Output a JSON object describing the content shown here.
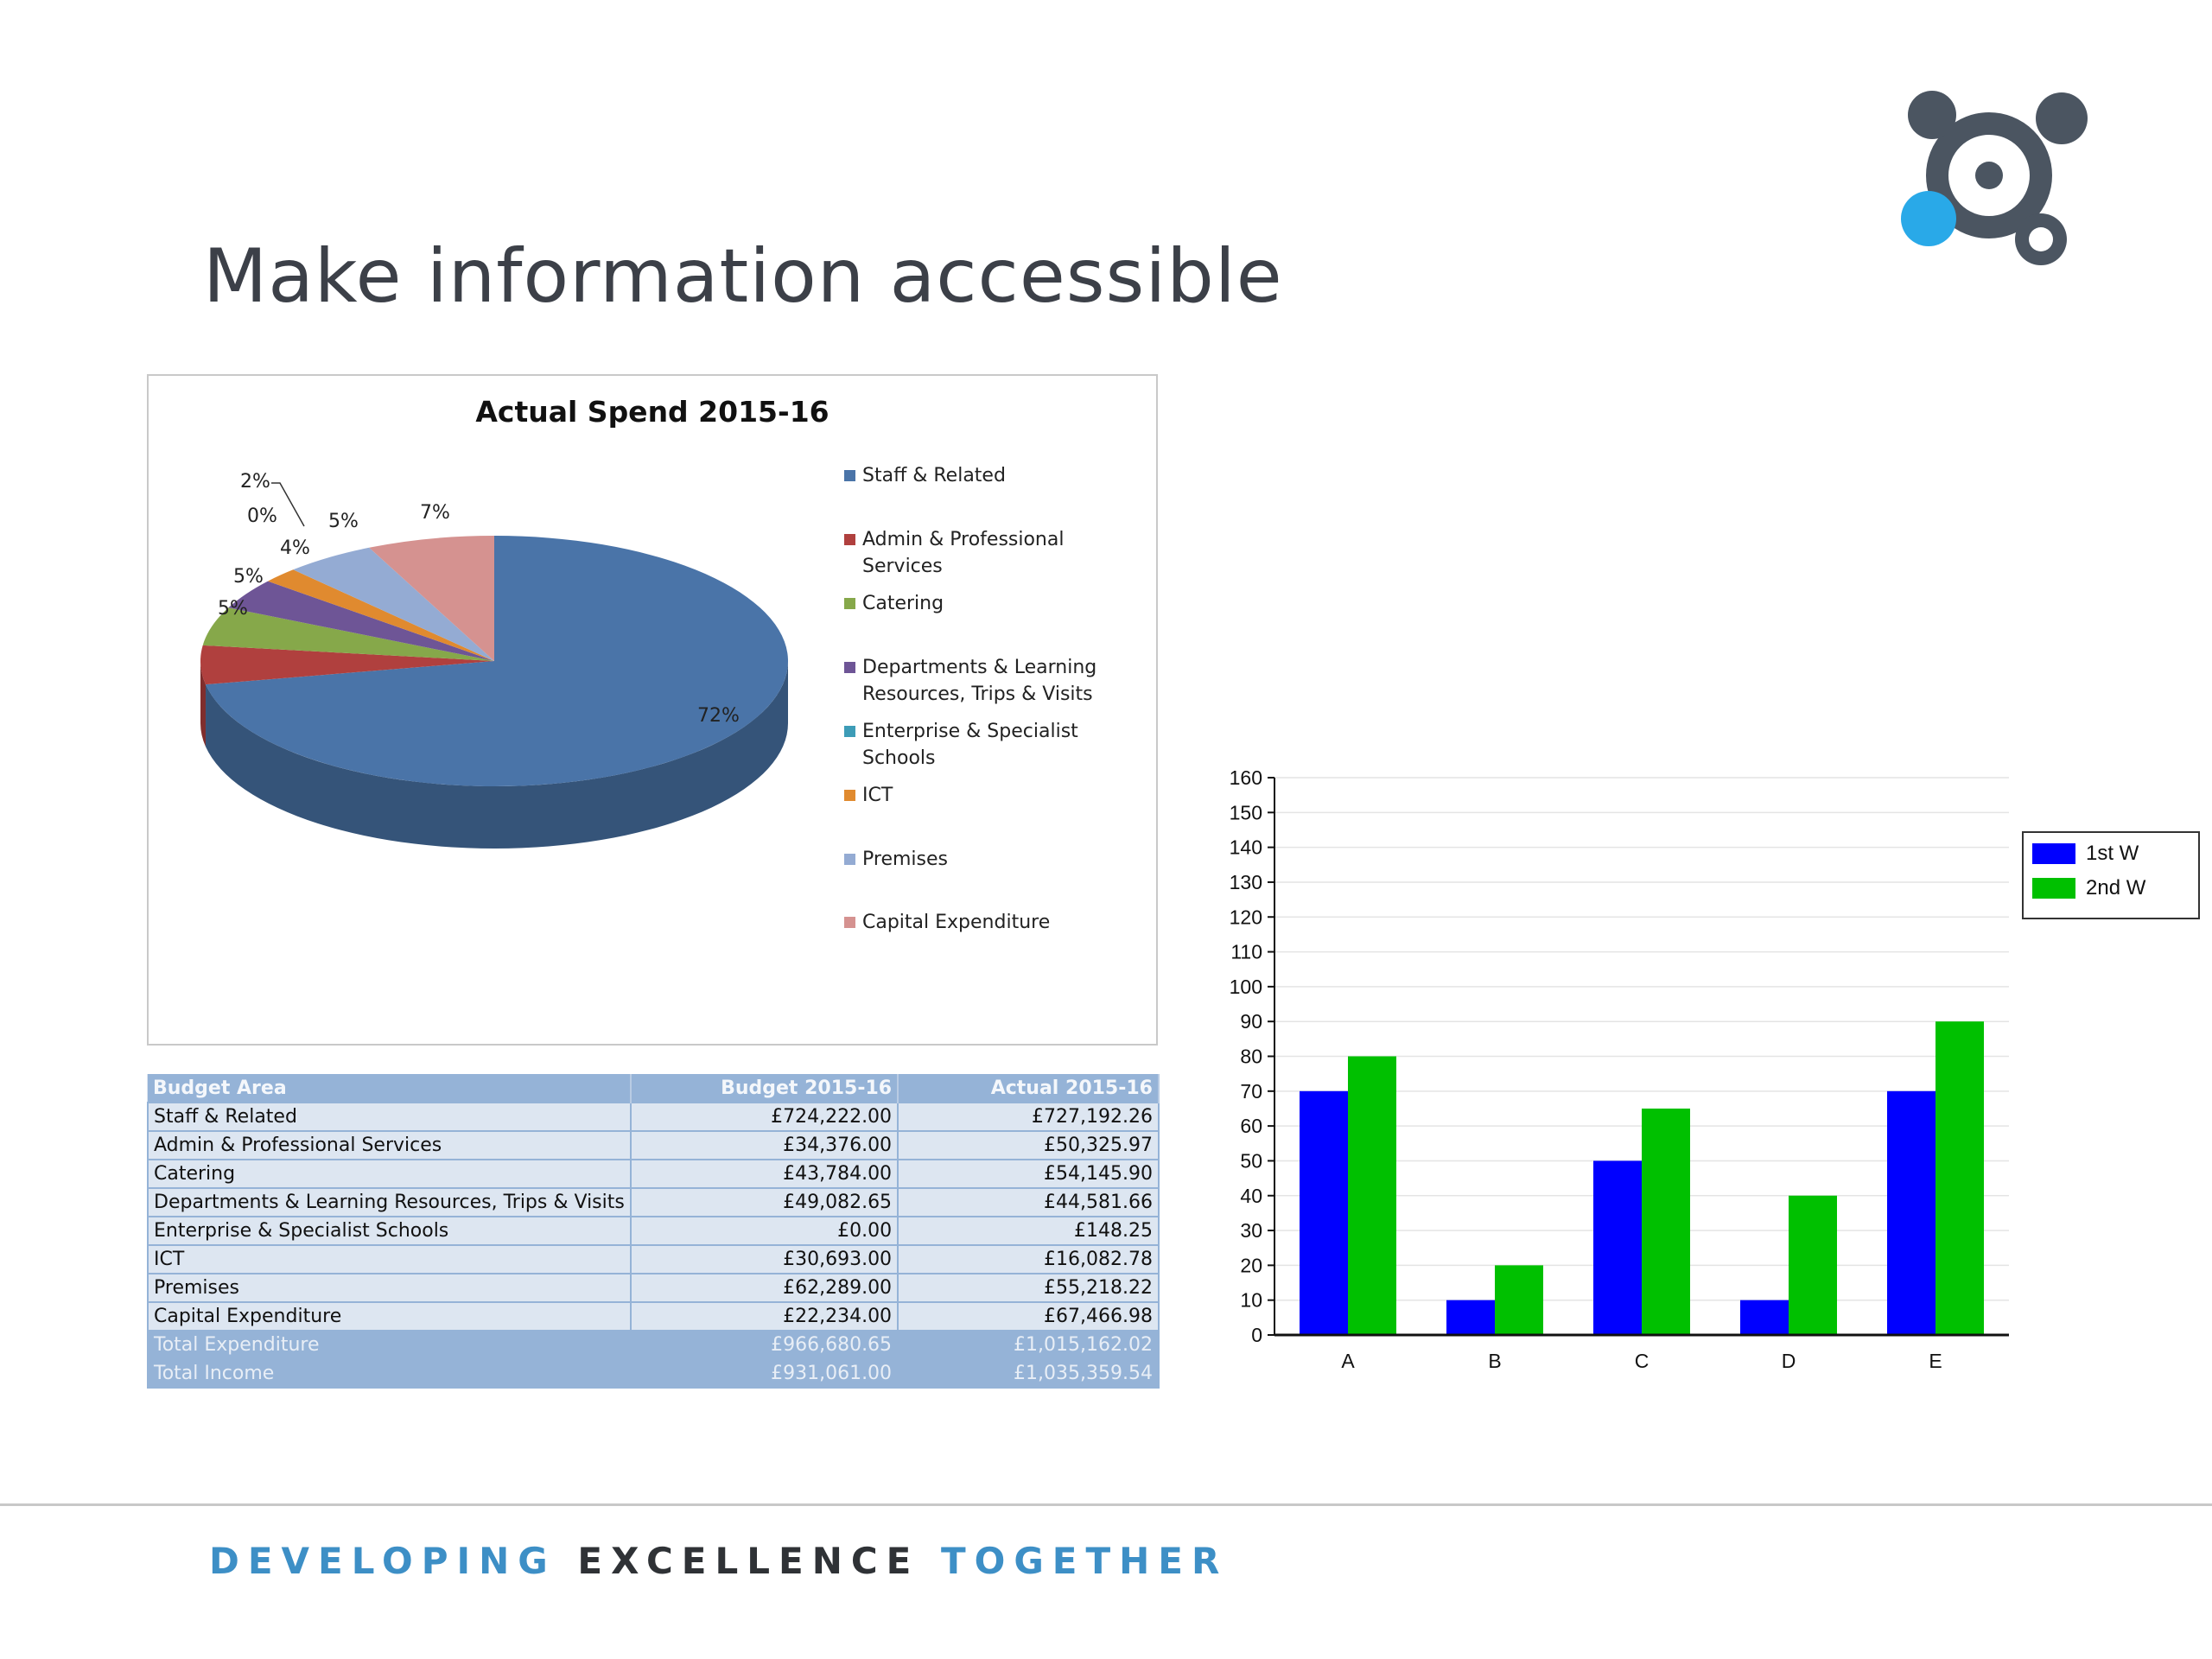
{
  "slide": {
    "title": "Make information accessible",
    "footer": {
      "part1": "DEVELOPING",
      "part2": "EXCELLENCE",
      "part3": "TOGETHER"
    },
    "colors": {
      "footer_blue": "#3d8fc6",
      "footer_dark": "#2f3236",
      "logo_dark": "#4b5561",
      "logo_accent": "#29a9e8"
    }
  },
  "pie_chart": {
    "title": "Actual Spend 2015-16",
    "legend": [
      "Staff & Related",
      "Admin & Professional Services",
      "Catering",
      "Departments & Learning Resources, Trips & Visits",
      "Enterprise & Specialist Schools",
      "ICT",
      "Premises",
      "Capital Expenditure"
    ]
  },
  "budget_table": {
    "headers": [
      "Budget Area",
      "Budget 2015-16",
      "Actual 2015-16"
    ],
    "rows": [
      [
        "Staff & Related",
        "£724,222.00",
        "£727,192.26"
      ],
      [
        "Admin & Professional Services",
        "£34,376.00",
        "£50,325.97"
      ],
      [
        "Catering",
        "£43,784.00",
        "£54,145.90"
      ],
      [
        "Departments & Learning Resources, Trips & Visits",
        "£49,082.65",
        "£44,581.66"
      ],
      [
        "Enterprise & Specialist Schools",
        "£0.00",
        "£148.25"
      ],
      [
        "ICT",
        "£30,693.00",
        "£16,082.78"
      ],
      [
        "Premises",
        "£62,289.00",
        "£55,218.22"
      ],
      [
        "Capital Expenditure",
        "£22,234.00",
        "£67,466.98"
      ]
    ],
    "totals": [
      [
        "Total Expenditure",
        "£966,680.65",
        "£1,015,162.02"
      ],
      [
        "Total Income",
        "£931,061.00",
        "£1,035,359.54"
      ]
    ]
  },
  "chart_data": [
    {
      "type": "pie",
      "title": "Actual Spend 2015-16",
      "categories": [
        "Staff & Related",
        "Admin & Professional Services",
        "Catering",
        "Departments & Learning Resources, Trips & Visits",
        "Enterprise & Specialist Schools",
        "ICT",
        "Premises",
        "Capital Expenditure"
      ],
      "values": [
        72,
        5,
        5,
        4,
        0,
        2,
        5,
        7
      ],
      "labels": [
        "72%",
        "5%",
        "5%",
        "4%",
        "0%",
        "2%",
        "5%",
        "7%"
      ],
      "colors": [
        "#4a74a8",
        "#b0403e",
        "#86a84a",
        "#6e5596",
        "#3d9cb7",
        "#e08a2f",
        "#94abd3",
        "#d59290"
      ],
      "legend_position": "right",
      "style": "3d"
    },
    {
      "type": "bar",
      "categories": [
        "A",
        "B",
        "C",
        "D",
        "E"
      ],
      "series": [
        {
          "name": "1st W",
          "values": [
            70,
            10,
            50,
            10,
            70
          ],
          "color": "#0000ff"
        },
        {
          "name": "2nd W",
          "values": [
            80,
            20,
            65,
            40,
            90
          ],
          "color": "#00c000"
        }
      ],
      "ylim": [
        0,
        160
      ],
      "yticks": [
        0,
        10,
        20,
        30,
        40,
        50,
        60,
        70,
        80,
        90,
        100,
        110,
        120,
        130,
        140,
        150,
        160
      ],
      "grid": true,
      "legend_position": "right"
    }
  ]
}
